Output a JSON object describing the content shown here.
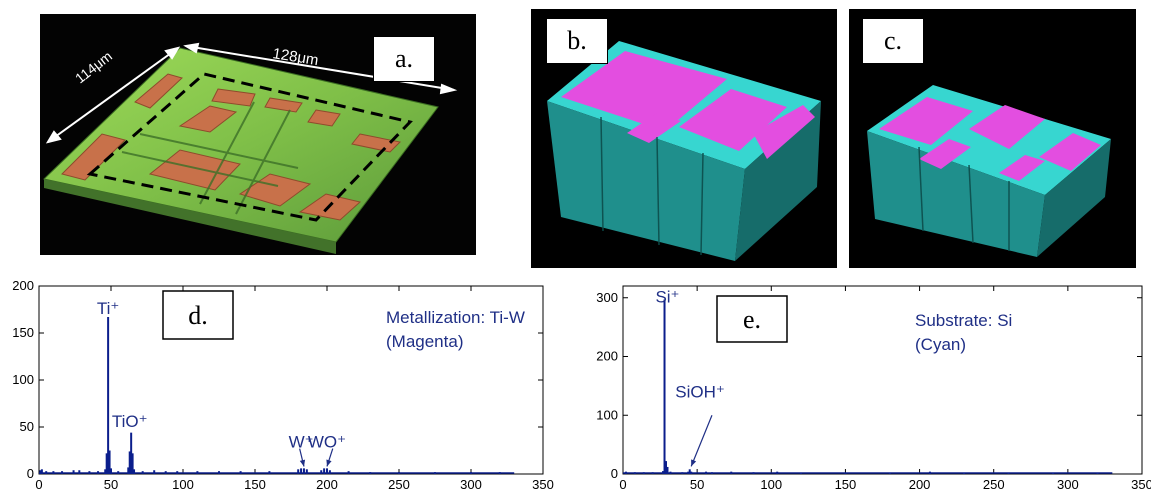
{
  "panels": {
    "a": {
      "label": "a.",
      "dim_width": "128μm",
      "dim_depth": "114μm"
    },
    "b": {
      "label": "b."
    },
    "c": {
      "label": "c."
    }
  },
  "colors": {
    "series": "#0b1e8c",
    "annotation": "#1f2f86",
    "magenta": "#e34ee0",
    "cyan": "#37d6d0"
  },
  "chart_data": [
    {
      "type": "line",
      "panel_label": "d.",
      "title_lines": [
        "Metallization: Ti-W",
        "(Magenta)"
      ],
      "xlim": [
        0,
        350
      ],
      "ylim": [
        0,
        200
      ],
      "xticks": [
        0,
        50,
        100,
        150,
        200,
        250,
        300,
        350
      ],
      "yticks": [
        0,
        50,
        100,
        150,
        200
      ],
      "peaks": [
        {
          "x": 1,
          "y": 4
        },
        {
          "x": 2,
          "y": 5
        },
        {
          "x": 5,
          "y": 3
        },
        {
          "x": 10,
          "y": 3
        },
        {
          "x": 16,
          "y": 3
        },
        {
          "x": 24,
          "y": 4
        },
        {
          "x": 28,
          "y": 4
        },
        {
          "x": 35,
          "y": 3
        },
        {
          "x": 41,
          "y": 3
        },
        {
          "x": 46,
          "y": 5
        },
        {
          "x": 47,
          "y": 22
        },
        {
          "x": 48,
          "y": 167
        },
        {
          "x": 49,
          "y": 25
        },
        {
          "x": 50,
          "y": 6
        },
        {
          "x": 55,
          "y": 3
        },
        {
          "x": 62,
          "y": 7
        },
        {
          "x": 63,
          "y": 24
        },
        {
          "x": 64,
          "y": 44
        },
        {
          "x": 65,
          "y": 22
        },
        {
          "x": 66,
          "y": 5
        },
        {
          "x": 72,
          "y": 3
        },
        {
          "x": 80,
          "y": 4
        },
        {
          "x": 88,
          "y": 3
        },
        {
          "x": 96,
          "y": 3
        },
        {
          "x": 110,
          "y": 3
        },
        {
          "x": 125,
          "y": 3
        },
        {
          "x": 140,
          "y": 3
        },
        {
          "x": 160,
          "y": 3
        },
        {
          "x": 180,
          "y": 5
        },
        {
          "x": 182,
          "y": 6
        },
        {
          "x": 184,
          "y": 6
        },
        {
          "x": 186,
          "y": 5
        },
        {
          "x": 196,
          "y": 4
        },
        {
          "x": 198,
          "y": 6
        },
        {
          "x": 200,
          "y": 6
        },
        {
          "x": 202,
          "y": 4
        },
        {
          "x": 215,
          "y": 3
        },
        {
          "x": 230,
          "y": 2
        },
        {
          "x": 250,
          "y": 2
        },
        {
          "x": 275,
          "y": 2
        },
        {
          "x": 300,
          "y": 2
        },
        {
          "x": 320,
          "y": 2
        }
      ],
      "annotations": [
        {
          "text": "Ti⁺",
          "x": 48,
          "y": 170
        },
        {
          "text": "TiO⁺",
          "x": 63,
          "y": 50
        },
        {
          "text": "W⁺",
          "x": 182,
          "y": 28
        },
        {
          "text": "WO⁺",
          "x": 200,
          "y": 28
        }
      ],
      "arrows": [
        {
          "from": [
            181,
            27
          ],
          "to": [
            184,
            8
          ]
        },
        {
          "from": [
            204,
            27
          ],
          "to": [
            200,
            8
          ]
        }
      ]
    },
    {
      "type": "line",
      "panel_label": "e.",
      "title_lines": [
        "Substrate: Si",
        "(Cyan)"
      ],
      "xlim": [
        0,
        350
      ],
      "ylim": [
        0,
        320
      ],
      "xticks": [
        0,
        50,
        100,
        150,
        200,
        250,
        300,
        350
      ],
      "yticks": [
        0,
        100,
        200,
        300
      ],
      "peaks": [
        {
          "x": 2,
          "y": 4
        },
        {
          "x": 8,
          "y": 3
        },
        {
          "x": 14,
          "y": 3
        },
        {
          "x": 20,
          "y": 3
        },
        {
          "x": 27,
          "y": 5
        },
        {
          "x": 28,
          "y": 297
        },
        {
          "x": 29,
          "y": 22
        },
        {
          "x": 30,
          "y": 12
        },
        {
          "x": 32,
          "y": 4
        },
        {
          "x": 40,
          "y": 3
        },
        {
          "x": 44,
          "y": 4
        },
        {
          "x": 45,
          "y": 8
        },
        {
          "x": 46,
          "y": 4
        },
        {
          "x": 56,
          "y": 4
        },
        {
          "x": 60,
          "y": 3
        },
        {
          "x": 73,
          "y": 4
        },
        {
          "x": 88,
          "y": 3
        },
        {
          "x": 104,
          "y": 4
        },
        {
          "x": 120,
          "y": 2
        },
        {
          "x": 150,
          "y": 2
        },
        {
          "x": 180,
          "y": 2
        },
        {
          "x": 207,
          "y": 4
        },
        {
          "x": 230,
          "y": 2
        },
        {
          "x": 260,
          "y": 2
        },
        {
          "x": 290,
          "y": 2
        },
        {
          "x": 320,
          "y": 2
        }
      ],
      "annotations": [
        {
          "text": "Si⁺",
          "x": 30,
          "y": 292
        },
        {
          "text": "SiOH⁺",
          "x": 52,
          "y": 130
        }
      ],
      "arrows": [
        {
          "from": [
            60,
            100
          ],
          "to": [
            46,
            13
          ]
        }
      ]
    }
  ]
}
